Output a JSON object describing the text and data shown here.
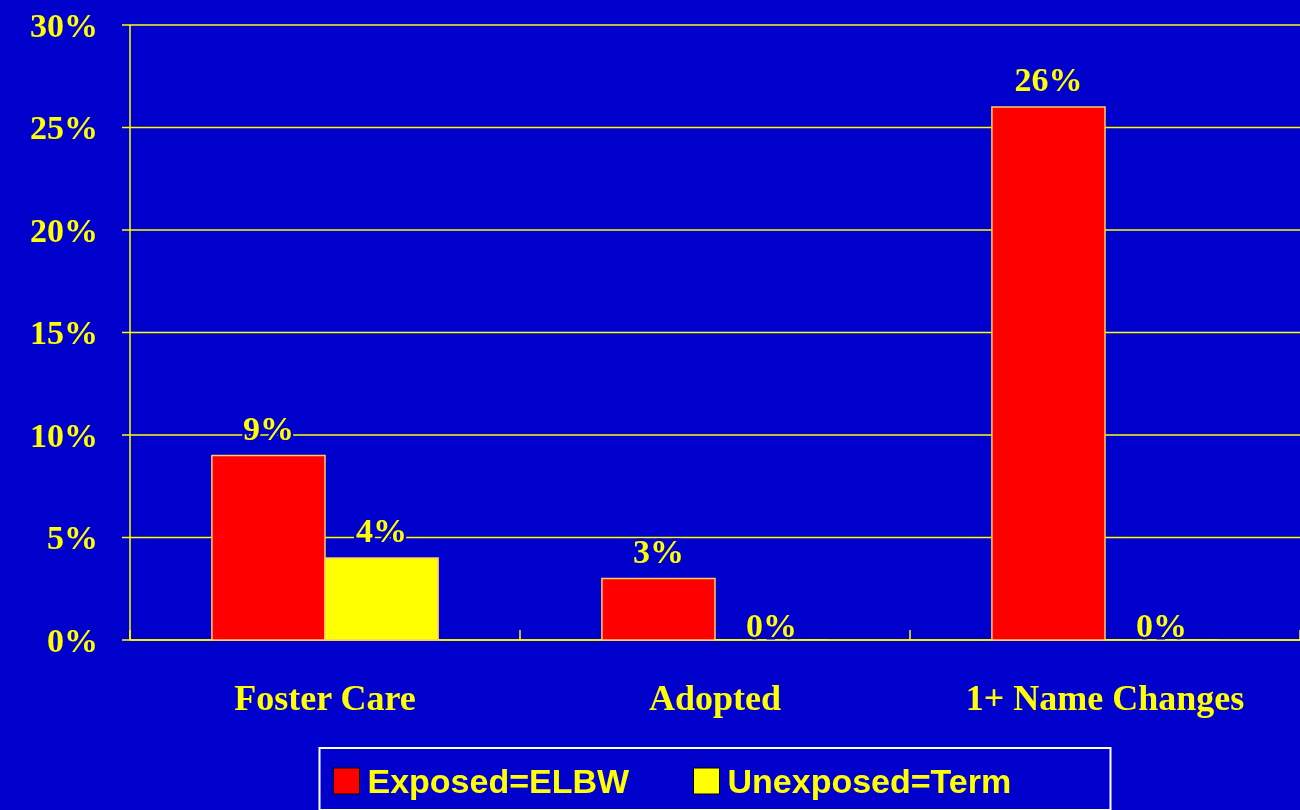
{
  "chart_data": {
    "type": "bar",
    "categories": [
      "Foster Care",
      "Adopted",
      "1+ Name Changes"
    ],
    "series": [
      {
        "name": "Exposed=ELBW",
        "color": "#ff0000",
        "values": [
          9,
          3,
          26
        ],
        "value_labels": [
          "9%",
          "3%",
          "26%"
        ]
      },
      {
        "name": "Unexposed=Term",
        "color": "#ffff00",
        "values": [
          4,
          0,
          0
        ],
        "value_labels": [
          "4%",
          "0%",
          "0%"
        ]
      }
    ],
    "ylim": [
      0,
      30
    ],
    "yticks": [
      {
        "value": 0,
        "label": "0%"
      },
      {
        "value": 5,
        "label": "5%"
      },
      {
        "value": 10,
        "label": "10%"
      },
      {
        "value": 15,
        "label": "15%"
      },
      {
        "value": 20,
        "label": "20%"
      },
      {
        "value": 25,
        "label": "25%"
      },
      {
        "value": 30,
        "label": "30%"
      }
    ],
    "grid": "y",
    "legend": "bottom"
  }
}
